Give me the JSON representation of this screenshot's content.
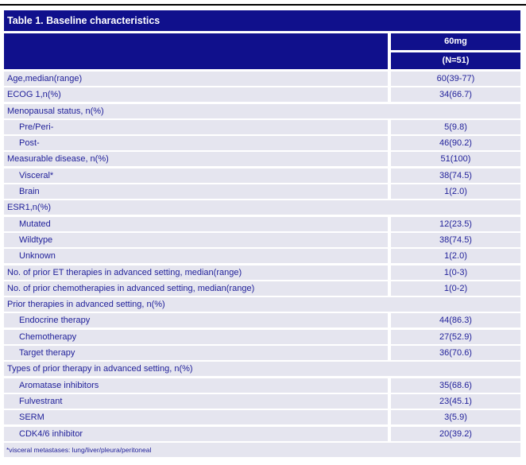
{
  "table": {
    "title": "Table 1. Baseline characteristics",
    "columns": {
      "dose_label": "60mg",
      "n_label": "(N=51)"
    },
    "rows": [
      {
        "label": "Age,median(range)",
        "value": "60(39-77)",
        "indent": false,
        "section": false
      },
      {
        "label": "ECOG 1,n(%)",
        "value": "34(66.7)",
        "indent": false,
        "section": false
      },
      {
        "label": "Menopausal status, n(%)",
        "value": "",
        "indent": false,
        "section": true
      },
      {
        "label": "Pre/Peri-",
        "value": "5(9.8)",
        "indent": true,
        "section": false
      },
      {
        "label": "Post-",
        "value": "46(90.2)",
        "indent": true,
        "section": false
      },
      {
        "label": "Measurable disease, n(%)",
        "value": "51(100)",
        "indent": false,
        "section": false
      },
      {
        "label": "Visceral*",
        "value": "38(74.5)",
        "indent": true,
        "section": false
      },
      {
        "label": "Brain",
        "value": "1(2.0)",
        "indent": true,
        "section": false
      },
      {
        "label": "ESR1,n(%)",
        "value": "",
        "indent": false,
        "section": true
      },
      {
        "label": "Mutated",
        "value": "12(23.5)",
        "indent": true,
        "section": false
      },
      {
        "label": "Wildtype",
        "value": "38(74.5)",
        "indent": true,
        "section": false
      },
      {
        "label": "Unknown",
        "value": "1(2.0)",
        "indent": true,
        "section": false
      },
      {
        "label": "No. of prior ET therapies in advanced setting, median(range)",
        "value": "1(0-3)",
        "indent": false,
        "section": false
      },
      {
        "label": "No. of prior chemotherapies in advanced setting, median(range)",
        "value": "1(0-2)",
        "indent": false,
        "section": false
      },
      {
        "label": "Prior therapies in advanced setting, n(%)",
        "value": "",
        "indent": false,
        "section": true
      },
      {
        "label": "Endocrine therapy",
        "value": "44(86.3)",
        "indent": true,
        "section": false
      },
      {
        "label": "Chemotherapy",
        "value": "27(52.9)",
        "indent": true,
        "section": false
      },
      {
        "label": "Target therapy",
        "value": "36(70.6)",
        "indent": true,
        "section": false
      },
      {
        "label": "Types of prior therapy in advanced setting, n(%)",
        "value": "",
        "indent": false,
        "section": true
      },
      {
        "label": "Aromatase inhibitors",
        "value": "35(68.6)",
        "indent": true,
        "section": false
      },
      {
        "label": "Fulvestrant",
        "value": "23(45.1)",
        "indent": true,
        "section": false
      },
      {
        "label": "SERM",
        "value": "3(5.9)",
        "indent": true,
        "section": false
      },
      {
        "label": "CDK4/6 inhibitor",
        "value": "20(39.2)",
        "indent": true,
        "section": false
      }
    ],
    "footnote": "*visceral metastases: lung/liver/pleura/peritoneal"
  },
  "colors": {
    "header_bg": "#10108C",
    "row_bg": "#E5E5EF",
    "text_navy": "#21219A",
    "top_rule": "#000000",
    "header_text": "#FFFFFF"
  }
}
